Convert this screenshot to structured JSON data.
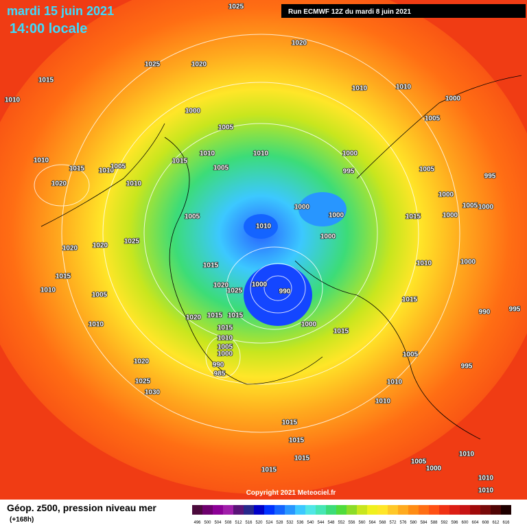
{
  "header": {
    "date": "mardi 15 juin 2021",
    "local_time": "14:00 locale",
    "run": "Run ECMWF 12Z du mardi 8 juin 2021"
  },
  "copyright": "Copyright 2021 Meteociel.fr",
  "legend": {
    "title": "Géop. z500, pression niveau mer",
    "lead": "(+168h)",
    "scale": [
      496,
      500,
      504,
      508,
      512,
      516,
      520,
      524,
      528,
      532,
      536,
      540,
      544,
      548,
      552,
      556,
      560,
      564,
      568,
      572,
      576,
      580,
      584,
      588,
      592,
      596,
      600,
      604,
      608,
      612,
      616
    ],
    "colors": [
      "#4b0a3c",
      "#6e006e",
      "#8c0096",
      "#a01eaa",
      "#5a1478",
      "#28288c",
      "#0000c8",
      "#0032ff",
      "#1464ff",
      "#2896ff",
      "#3cc8ff",
      "#50e6e6",
      "#46e6b4",
      "#3cdc78",
      "#50dc3c",
      "#8cdc28",
      "#c8e61e",
      "#f0f01e",
      "#ffe628",
      "#ffc828",
      "#ffaa1e",
      "#ff8c14",
      "#ff6e14",
      "#ff5014",
      "#f03214",
      "#dc1e14",
      "#c81414",
      "#a00a0a",
      "#780a0a",
      "#500505",
      "#1e0000"
    ]
  },
  "isobars": [
    "1025",
    "1020",
    "1025",
    "1020",
    "1015",
    "1010",
    "1010",
    "1010",
    "1000",
    "1005",
    "1000",
    "1005",
    "1010",
    "1015",
    "1010",
    "1005",
    "1015",
    "1010",
    "1005",
    "1010",
    "1000",
    "995",
    "1005",
    "995",
    "1020",
    "1010",
    "1000",
    "1005",
    "1000",
    "1000",
    "1000",
    "1015",
    "1000",
    "1010",
    "1005",
    "1025",
    "1020",
    "1020",
    "1000",
    "1015",
    "1015",
    "1010",
    "1000",
    "1020",
    "1025",
    "1000",
    "990",
    "1010",
    "1005",
    "1015",
    "1020",
    "1015",
    "1015",
    "1000",
    "1015",
    "1010",
    "1015",
    "1010",
    "1005",
    "1000",
    "1005",
    "1020",
    "990",
    "985",
    "1025",
    "1030",
    "1010",
    "1010",
    "1015",
    "1015",
    "1015",
    "1015",
    "1005",
    "1000",
    "1010",
    "1010",
    "1010",
    "995",
    "990",
    "995"
  ]
}
